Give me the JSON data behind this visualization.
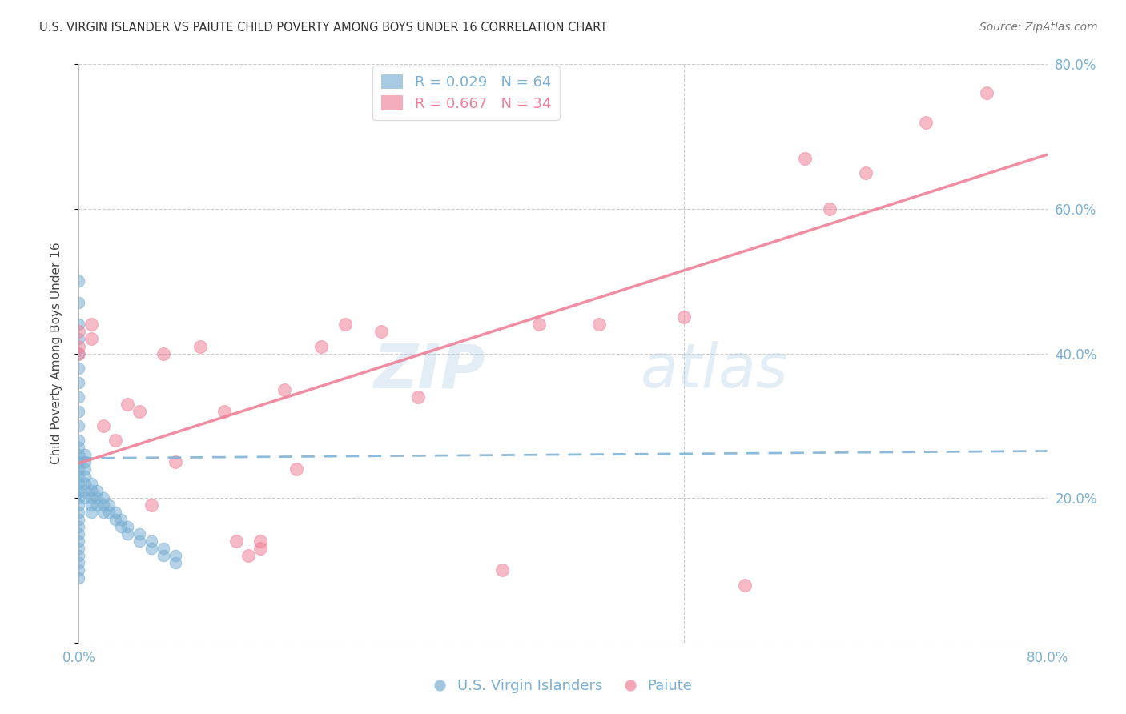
{
  "title": "U.S. VIRGIN ISLANDER VS PAIUTE CHILD POVERTY AMONG BOYS UNDER 16 CORRELATION CHART",
  "source": "Source: ZipAtlas.com",
  "ylabel": "Child Poverty Among Boys Under 16",
  "xlim": [
    0.0,
    0.8
  ],
  "ylim": [
    0.0,
    0.8
  ],
  "xticks": [
    0.0,
    0.1,
    0.2,
    0.3,
    0.4,
    0.5,
    0.6,
    0.7,
    0.8
  ],
  "yticks": [
    0.0,
    0.2,
    0.4,
    0.6,
    0.8
  ],
  "grid_color": "#cccccc",
  "background_color": "#ffffff",
  "blue_color": "#7ab0d4",
  "pink_color": "#f08098",
  "blue_R": 0.029,
  "blue_N": 64,
  "pink_R": 0.667,
  "pink_N": 34,
  "blue_scatter_x": [
    0.0,
    0.0,
    0.0,
    0.0,
    0.0,
    0.0,
    0.0,
    0.0,
    0.0,
    0.0,
    0.0,
    0.0,
    0.0,
    0.0,
    0.0,
    0.0,
    0.0,
    0.0,
    0.0,
    0.0,
    0.0,
    0.0,
    0.0,
    0.0,
    0.0,
    0.0,
    0.0,
    0.0,
    0.0,
    0.0,
    0.005,
    0.005,
    0.005,
    0.005,
    0.005,
    0.005,
    0.005,
    0.01,
    0.01,
    0.01,
    0.01,
    0.01,
    0.015,
    0.015,
    0.015,
    0.02,
    0.02,
    0.02,
    0.025,
    0.025,
    0.03,
    0.03,
    0.035,
    0.035,
    0.04,
    0.04,
    0.05,
    0.05,
    0.06,
    0.06,
    0.07,
    0.07,
    0.08,
    0.08
  ],
  "blue_scatter_y": [
    0.5,
    0.47,
    0.44,
    0.42,
    0.4,
    0.38,
    0.36,
    0.34,
    0.32,
    0.3,
    0.28,
    0.27,
    0.26,
    0.25,
    0.24,
    0.23,
    0.22,
    0.21,
    0.2,
    0.19,
    0.18,
    0.17,
    0.16,
    0.15,
    0.14,
    0.13,
    0.12,
    0.11,
    0.1,
    0.09,
    0.26,
    0.25,
    0.24,
    0.23,
    0.22,
    0.21,
    0.2,
    0.22,
    0.21,
    0.2,
    0.19,
    0.18,
    0.21,
    0.2,
    0.19,
    0.2,
    0.19,
    0.18,
    0.19,
    0.18,
    0.18,
    0.17,
    0.17,
    0.16,
    0.16,
    0.15,
    0.15,
    0.14,
    0.14,
    0.13,
    0.13,
    0.12,
    0.12,
    0.11
  ],
  "pink_scatter_x": [
    0.0,
    0.0,
    0.0,
    0.01,
    0.01,
    0.02,
    0.03,
    0.04,
    0.05,
    0.06,
    0.07,
    0.08,
    0.1,
    0.12,
    0.13,
    0.14,
    0.15,
    0.15,
    0.17,
    0.18,
    0.2,
    0.22,
    0.25,
    0.28,
    0.35,
    0.38,
    0.43,
    0.5,
    0.55,
    0.6,
    0.62,
    0.65,
    0.7,
    0.75
  ],
  "pink_scatter_y": [
    0.43,
    0.41,
    0.4,
    0.44,
    0.42,
    0.3,
    0.28,
    0.33,
    0.32,
    0.19,
    0.4,
    0.25,
    0.41,
    0.32,
    0.14,
    0.12,
    0.14,
    0.13,
    0.35,
    0.24,
    0.41,
    0.44,
    0.43,
    0.34,
    0.1,
    0.44,
    0.44,
    0.45,
    0.08,
    0.67,
    0.6,
    0.65,
    0.72,
    0.76
  ],
  "title_fontsize": 10.5,
  "source_fontsize": 10,
  "legend_fontsize": 13,
  "axis_label_fontsize": 11,
  "tick_fontsize": 12
}
